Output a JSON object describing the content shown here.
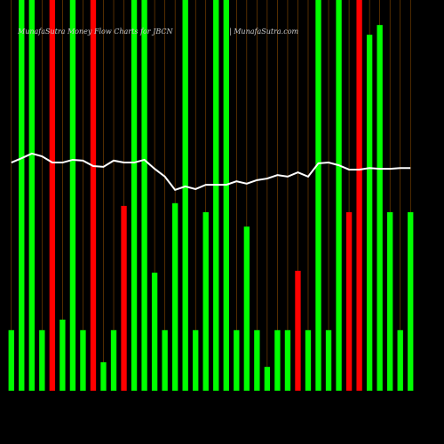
{
  "chart_data": {
    "type": "bar",
    "title": "MunafaSutra  Money Flow  Charts for JBCN",
    "subtitle": "| MunafaSutra.com",
    "categories": [
      null,
      null,
      null,
      null,
      null,
      null,
      null,
      null,
      null,
      null,
      null,
      null,
      null,
      null,
      null,
      null,
      null,
      null,
      null,
      null,
      null,
      null,
      null,
      null,
      null,
      null,
      null,
      null,
      null,
      null,
      null,
      null,
      null,
      null,
      null,
      null,
      null,
      null,
      null,
      null
    ],
    "ylim": [
      0,
      100
    ],
    "series": [
      {
        "type": "bar",
        "colors": [
          "#00ff00",
          "#00ff00",
          "#00ff00",
          "#00ff00",
          "#ff0000",
          "#00ff00",
          "#00ff00",
          "#00ff00",
          "#ff0000",
          "#00ff00",
          "#00ff00",
          "#ff0000",
          "#00ff00",
          "#00ff00",
          "#00ff00",
          "#00ff00",
          "#00ff00",
          "#00ff00",
          "#00ff00",
          "#00ff00",
          "#00ff00",
          "#00ff00",
          "#00ff00",
          "#00ff00",
          "#00ff00",
          "#00ff00",
          "#00ff00",
          "#00ff00",
          "#ff0000",
          "#00ff00",
          "#00ff00",
          "#00ff00",
          "#00ff00",
          "#ff0000",
          "#ff0000",
          "#00ff00",
          "#00ff00",
          "#00ff00",
          "#00ff00",
          "#00ff00"
        ],
        "values": [
          15.5,
          100,
          100,
          15.5,
          100,
          18.2,
          100,
          15.5,
          100,
          7.3,
          15.5,
          47.3,
          100,
          100,
          30.2,
          15.5,
          48,
          100,
          15.5,
          45.7,
          100,
          100,
          15.5,
          42,
          15.5,
          6.1,
          15.5,
          15.5,
          30.7,
          15.5,
          100,
          15.5,
          100,
          45.7,
          100,
          91.1,
          93.6,
          45.7,
          15.5,
          45.7
        ]
      },
      {
        "type": "line",
        "color": "#ffffff",
        "values": [
          58.4,
          59.5,
          60.7,
          60,
          58.4,
          58.4,
          59.1,
          58.9,
          57.5,
          57.3,
          58.9,
          58.4,
          58.4,
          59.1,
          56.8,
          54.8,
          51.4,
          52.3,
          51.6,
          52.7,
          52.7,
          52.7,
          53.6,
          53,
          53.9,
          54.3,
          55.2,
          54.8,
          55.9,
          54.8,
          58.2,
          58.4,
          57.7,
          56.6,
          56.6,
          57,
          56.8,
          56.8,
          57,
          57
        ]
      }
    ]
  }
}
